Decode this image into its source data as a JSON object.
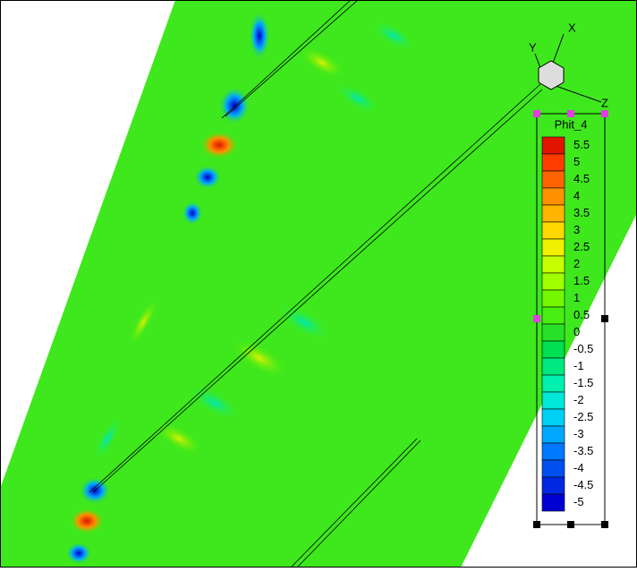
{
  "legend": {
    "title": "Phit_4",
    "levels": [
      5.5,
      5,
      4.5,
      4,
      3.5,
      3,
      2.5,
      2,
      1.5,
      1,
      0.5,
      0,
      -0.5,
      -1,
      -1.5,
      -2,
      -2.5,
      -3,
      -3.5,
      -4,
      -4.5,
      -5
    ],
    "colors": [
      "#e01400",
      "#ff3c00",
      "#ff6400",
      "#ff9000",
      "#ffb400",
      "#ffd800",
      "#f0f000",
      "#c8ff00",
      "#a0ff00",
      "#74f800",
      "#48ee10",
      "#28e028",
      "#00e050",
      "#00e880",
      "#00f0b0",
      "#00e8d8",
      "#00d0f4",
      "#00a8ff",
      "#0078ff",
      "#0050f0",
      "#0028e0",
      "#0000d0"
    ]
  },
  "axes": {
    "x": "X",
    "y": "Y",
    "z": "Z"
  }
}
